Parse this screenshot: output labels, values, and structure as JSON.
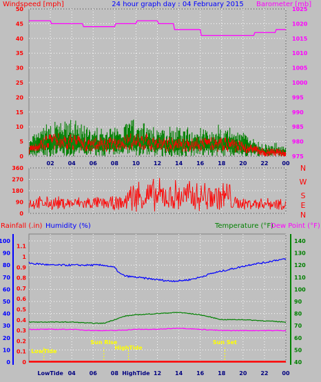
{
  "colors": {
    "background": "#c0c0c0",
    "plot_bg": "#c0c0c0",
    "wind_avg": "#ff0000",
    "wind_gust": "#008000",
    "barometer": "#ff00ff",
    "direction": "#ff0000",
    "humidity": "#0000ff",
    "temperature": "#008000",
    "dewpoint": "#ff00ff",
    "rainfall": "#ff0000",
    "event": "#ffff00",
    "grid": "#ffffff"
  },
  "chart_data": [
    {
      "type": "line",
      "name": "wind-barometer",
      "title": "24 hour graph day : 04 February 2015",
      "left_label": "Windspeed [mph]",
      "right_label": "Barometer [mb]",
      "x_ticks": [
        "02",
        "04",
        "06",
        "08",
        "10",
        "12",
        "14",
        "16",
        "18",
        "20",
        "22",
        "00"
      ],
      "y_left_ticks": [
        0,
        5,
        10,
        15,
        20,
        25,
        30,
        35,
        40,
        45,
        50
      ],
      "y_left_range": [
        0,
        50
      ],
      "y_right_ticks": [
        975,
        980,
        985,
        990,
        995,
        1000,
        1005,
        1010,
        1015,
        1020,
        1025
      ],
      "y_right_range": [
        975,
        1025
      ],
      "barometer": {
        "x": [
          0,
          2,
          2.1,
          5,
          5.1,
          8,
          8.1,
          10,
          10.1,
          12,
          12.1,
          13.5,
          13.6,
          16,
          16.1,
          21,
          21.1,
          23,
          23.1,
          24
        ],
        "y": [
          1021,
          1021,
          1020,
          1020,
          1019,
          1019,
          1020,
          1020,
          1021,
          1021,
          1020,
          1020,
          1018,
          1018,
          1016,
          1016,
          1017,
          1017,
          1018,
          1018
        ]
      },
      "gust_envelope": {
        "hours": [
          0,
          1,
          2,
          3,
          4,
          5,
          6,
          7,
          8,
          9,
          10,
          11,
          12,
          13,
          14,
          15,
          16,
          17,
          18,
          19,
          20,
          21,
          22,
          23,
          24
        ],
        "max_mph": [
          6,
          10,
          13,
          13,
          14,
          12,
          10,
          11,
          11,
          15,
          15,
          13,
          11,
          13,
          11,
          11,
          11,
          12,
          11,
          11,
          9,
          7,
          5,
          5,
          4
        ]
      },
      "average_envelope": {
        "hours": [
          0,
          1,
          2,
          3,
          4,
          5,
          6,
          7,
          8,
          9,
          10,
          11,
          12,
          13,
          14,
          15,
          16,
          17,
          18,
          19,
          20,
          21,
          22,
          23,
          24
        ],
        "mph": [
          3,
          5,
          6,
          6,
          6,
          5,
          5,
          5,
          5,
          6,
          6,
          6,
          5,
          5,
          5,
          5,
          5,
          5,
          5,
          5,
          4,
          3,
          2,
          2,
          2
        ]
      }
    },
    {
      "type": "scatter",
      "name": "wind-direction",
      "y_ticks": [
        0,
        90,
        180,
        270,
        360
      ],
      "y_range": [
        0,
        360
      ],
      "compass": [
        "N",
        "W",
        "S",
        "E",
        "N"
      ],
      "x_ticks": [
        "02",
        "04",
        "06",
        "08",
        "10",
        "12",
        "14",
        "16",
        "18",
        "20",
        "22",
        "00"
      ]
    },
    {
      "type": "line",
      "name": "temperature-humidity",
      "left_labels": [
        "Rainfall (.in)",
        "Humidity (%)"
      ],
      "right_labels": [
        "Temperature (°F)",
        "Dew Point (°F)"
      ],
      "humidity_ticks": [
        0,
        10,
        20,
        30,
        40,
        50,
        60,
        70,
        80,
        90,
        100
      ],
      "humidity_range": [
        0,
        100
      ],
      "rain_ticks": [
        0,
        0.1,
        0.2,
        0.3,
        0.4,
        0.5,
        0.6,
        0.7,
        0.8,
        0.9,
        1,
        1.1
      ],
      "temp_ticks": [
        40,
        50,
        60,
        70,
        80,
        90,
        100,
        110,
        120,
        130,
        140
      ],
      "temp_range": [
        40,
        140
      ],
      "x_ticks": [
        "LowTide",
        "04",
        "06",
        "08",
        "HighTide",
        "12",
        "14",
        "16",
        "18",
        "20",
        "22",
        "00"
      ],
      "humidity": {
        "hours": [
          0,
          0.5,
          1,
          2,
          3,
          4,
          5,
          6,
          7,
          8,
          8.5,
          9,
          10,
          11,
          12,
          13,
          14,
          15,
          16,
          17,
          18,
          19,
          20,
          21,
          22,
          23,
          24
        ],
        "values": [
          82,
          81,
          81,
          80,
          80,
          80,
          80,
          80,
          80,
          78,
          73,
          71,
          70,
          69,
          68,
          67,
          67,
          68,
          70,
          73,
          75,
          77,
          79,
          81,
          82,
          84,
          85
        ]
      },
      "temperature": {
        "hours": [
          0,
          2,
          4,
          6,
          7,
          8,
          9,
          10,
          12,
          14,
          16,
          17,
          18,
          20,
          22,
          24
        ],
        "values": [
          73,
          73,
          73,
          72,
          72,
          75,
          78,
          79,
          80,
          81,
          79,
          77,
          75,
          75,
          74,
          73
        ]
      },
      "dew_point": {
        "hours": [
          0,
          2,
          4,
          6,
          8,
          10,
          12,
          14,
          16,
          18,
          20,
          22,
          24
        ],
        "values": [
          67,
          67,
          67,
          66,
          66,
          67,
          67,
          68,
          67,
          66,
          66,
          66,
          66
        ]
      },
      "rainfall": {
        "hours": [
          0,
          24
        ],
        "values": [
          0,
          0
        ]
      },
      "events": [
        {
          "label": "LowTide",
          "hour": 1.4
        },
        {
          "label": "Sun Rise",
          "hour": 7.0
        },
        {
          "label": "HighTide",
          "hour": 9.3
        },
        {
          "label": "Sun Set",
          "hour": 18.3
        }
      ]
    }
  ]
}
